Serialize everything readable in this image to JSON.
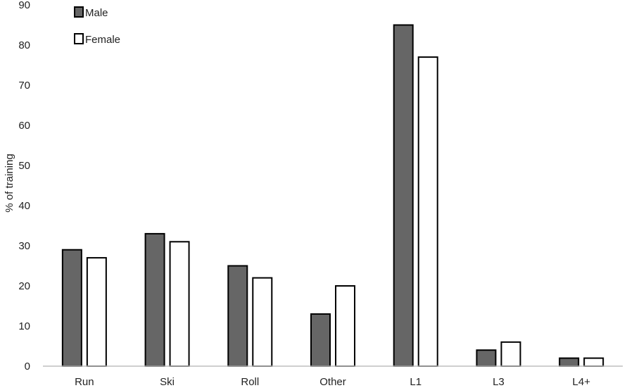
{
  "chart_data": {
    "type": "bar",
    "title": "",
    "xlabel": "",
    "ylabel": "% of training",
    "ylim": [
      0,
      90
    ],
    "yticks": [
      0,
      10,
      20,
      30,
      40,
      50,
      60,
      70,
      80,
      90
    ],
    "grid": false,
    "legend_position": "top-left",
    "categories": [
      "Run",
      "Ski",
      "Roll",
      "Other",
      "L1",
      "L3",
      "L4+"
    ],
    "series": [
      {
        "name": "Male",
        "color": "#666666",
        "values": [
          29,
          33,
          25,
          13,
          85,
          4,
          2
        ]
      },
      {
        "name": "Female",
        "color": "#ffffff",
        "values": [
          27,
          31,
          22,
          20,
          77,
          6,
          2
        ]
      }
    ]
  }
}
